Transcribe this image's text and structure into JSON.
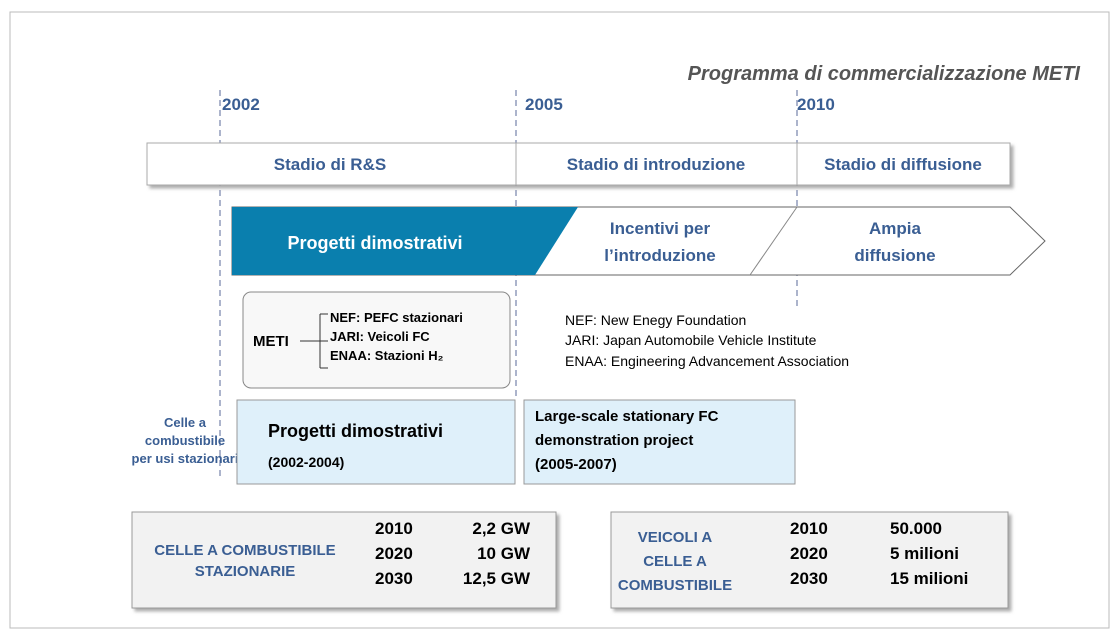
{
  "title": "Programma di commercializzazione METI",
  "years": [
    "2002",
    "2005",
    "2010"
  ],
  "stages": [
    "Stadio di R&S",
    "Stadio di introduzione",
    "Stadio di diffusione"
  ],
  "arrow": {
    "phase1": "Progetti dimostrativi",
    "phase2": [
      "Incentivi per",
      "l’introduzione"
    ],
    "phase3": [
      "Ampia",
      "diffusione"
    ]
  },
  "meti": {
    "label": "METI",
    "items": [
      "NEF: PEFC stazionari",
      "JARI: Veicoli FC",
      "ENAA: Stazioni H₂"
    ]
  },
  "legend": [
    "NEF: New Enegy Foundation",
    "JARI: Japan Automobile Vehicle Institute",
    "ENAA: Engineering Advancement Association"
  ],
  "side_label": [
    "Celle a",
    "combustibile",
    "per usi stazionari"
  ],
  "projects": [
    {
      "lines": [
        "Progetti dimostrativi",
        "(2002-2004)"
      ]
    },
    {
      "lines": [
        "Large-scale stationary FC",
        "demonstration project",
        "(2005-2007)"
      ]
    }
  ],
  "targets": [
    {
      "label": [
        "CELLE A COMBUSTIBILE",
        "STAZIONARIE"
      ],
      "rows": [
        [
          "2010",
          "2,2 GW"
        ],
        [
          "2020",
          "10 GW"
        ],
        [
          "2030",
          "12,5 GW"
        ]
      ]
    },
    {
      "label": [
        "VEICOLI A",
        "CELLE A",
        "COMBUSTIBILE"
      ],
      "rows": [
        [
          "2010",
          "50.000"
        ],
        [
          "2020",
          "5 milioni"
        ],
        [
          "2030",
          "15 milioni"
        ]
      ]
    }
  ]
}
